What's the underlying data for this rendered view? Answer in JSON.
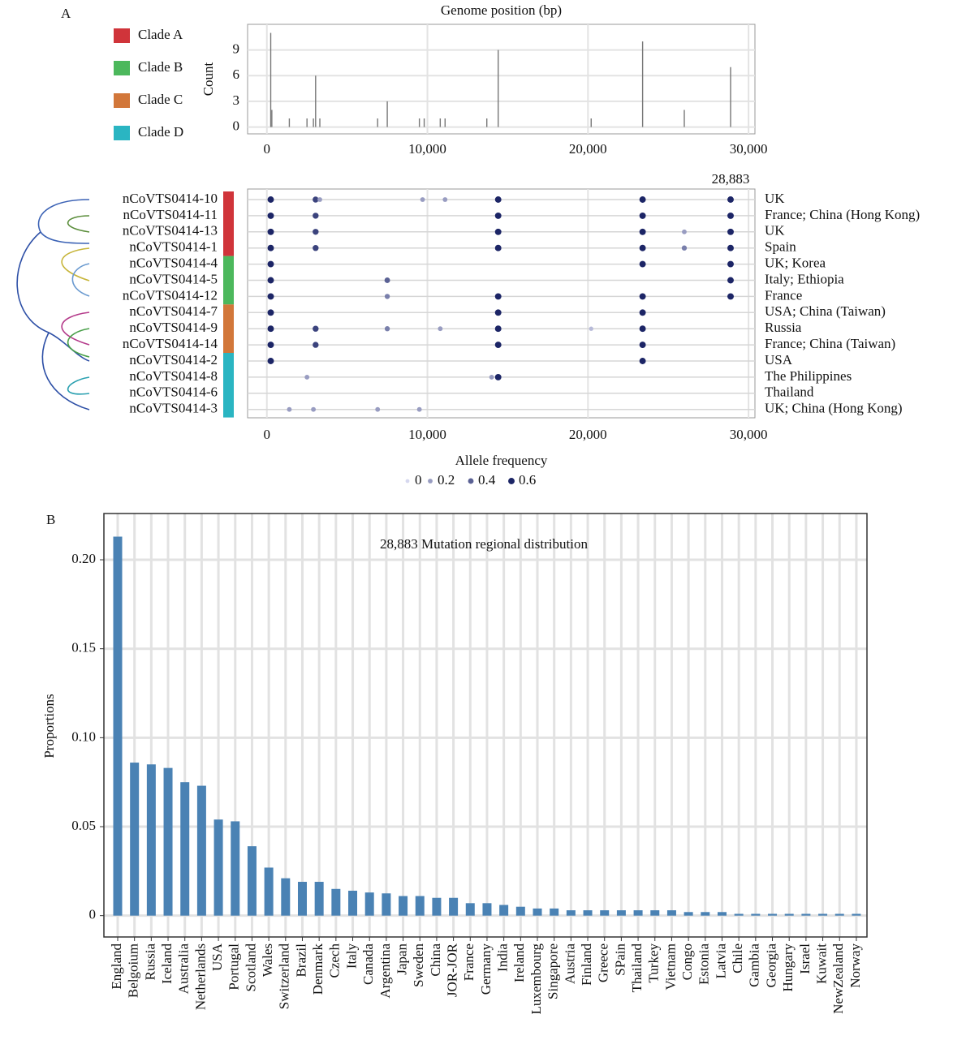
{
  "chart_data": [
    {
      "type": "spike",
      "panel": "A",
      "title": "Genome position (bp)",
      "y_label": "Count",
      "color": "#777777",
      "x": [
        241,
        310,
        1400,
        2500,
        2900,
        3037,
        3300,
        6900,
        7500,
        9500,
        9800,
        10800,
        11100,
        13700,
        14408,
        20200,
        23403,
        26000,
        28883
      ],
      "values": [
        11,
        2,
        1,
        1,
        1,
        6,
        1,
        1,
        3,
        1,
        1,
        1,
        1,
        1,
        9,
        1,
        10,
        2,
        7
      ],
      "xlim": [
        -1200,
        30400
      ],
      "ylim": [
        -0.8,
        12
      ],
      "xticks": [
        0,
        {
          "value": 10000,
          "label": "10,000"
        },
        {
          "value": 20000,
          "label": "20,000"
        },
        {
          "value": 30000,
          "label": "30,000"
        }
      ],
      "yticks": [
        0,
        3,
        6,
        9
      ],
      "grid": true
    },
    {
      "type": "dot-matrix",
      "annotation": {
        "value": 28883,
        "label": "28,883"
      },
      "legend_title": "Allele frequency",
      "legend_values": [
        0,
        0.2,
        0.4,
        0.6
      ],
      "color_range": [
        "#d6d8ef",
        "#1c2566"
      ],
      "xlim": [
        -1200,
        30400
      ],
      "xticks": [
        0,
        {
          "value": 10000,
          "label": "10,000"
        },
        {
          "value": 20000,
          "label": "20,000"
        },
        {
          "value": 30000,
          "label": "30,000"
        }
      ],
      "grid": true,
      "clades": [
        {
          "name": "Clade A",
          "color": "#d0343a",
          "samples": [
            {
              "name": "nCoVTS0414-10",
              "country": "UK",
              "positions": [
                241,
                3037,
                3300,
                9700,
                11100,
                14408,
                23403,
                28883
              ],
              "frequencies": [
                0.6,
                0.5,
                0.2,
                0.2,
                0.2,
                0.6,
                0.6,
                0.6
              ]
            },
            {
              "name": "nCoVTS0414-11",
              "country": "France; China (Hong Kong)",
              "positions": [
                241,
                3037,
                14408,
                23403,
                28883
              ],
              "frequencies": [
                0.6,
                0.5,
                0.6,
                0.6,
                0.6
              ]
            },
            {
              "name": "nCoVTS0414-13",
              "country": "UK",
              "positions": [
                241,
                3037,
                14408,
                23403,
                26000,
                28883
              ],
              "frequencies": [
                0.6,
                0.5,
                0.6,
                0.6,
                0.2,
                0.6
              ]
            },
            {
              "name": "nCoVTS0414-1",
              "country": "Spain",
              "positions": [
                241,
                3037,
                14408,
                23403,
                26000,
                28883
              ],
              "frequencies": [
                0.6,
                0.5,
                0.6,
                0.6,
                0.3,
                0.6
              ]
            }
          ]
        },
        {
          "name": "Clade B",
          "color": "#4cb85c",
          "samples": [
            {
              "name": "nCoVTS0414-4",
              "country": "UK; Korea",
              "positions": [
                241,
                23403,
                28883
              ],
              "frequencies": [
                0.6,
                0.6,
                0.6
              ]
            },
            {
              "name": "nCoVTS0414-5",
              "country": "Italy; Ethiopia",
              "positions": [
                241,
                7500,
                28883
              ],
              "frequencies": [
                0.6,
                0.4,
                0.6
              ]
            },
            {
              "name": "nCoVTS0414-12",
              "country": "France",
              "positions": [
                241,
                7500,
                14408,
                23403,
                28883
              ],
              "frequencies": [
                0.6,
                0.3,
                0.6,
                0.6,
                0.6
              ]
            }
          ]
        },
        {
          "name": "Clade C",
          "color": "#d2773a",
          "samples": [
            {
              "name": "nCoVTS0414-7",
              "country": "USA; China (Taiwan)",
              "positions": [
                241,
                14408,
                23403
              ],
              "frequencies": [
                0.6,
                0.6,
                0.6
              ]
            },
            {
              "name": "nCoVTS0414-9",
              "country": "Russia",
              "positions": [
                241,
                3037,
                7500,
                10800,
                14408,
                20200,
                23403
              ],
              "frequencies": [
                0.6,
                0.5,
                0.3,
                0.2,
                0.6,
                0.1,
                0.6
              ]
            },
            {
              "name": "nCoVTS0414-14",
              "country": "France; China (Taiwan)",
              "positions": [
                241,
                3037,
                14408,
                23403
              ],
              "frequencies": [
                0.6,
                0.5,
                0.6,
                0.6
              ]
            }
          ]
        },
        {
          "name": "Clade D",
          "color": "#2ab5c2",
          "samples": [
            {
              "name": "nCoVTS0414-2",
              "country": "USA",
              "positions": [
                241,
                23403
              ],
              "frequencies": [
                0.6,
                0.6
              ]
            },
            {
              "name": "nCoVTS0414-8",
              "country": "The Philippines",
              "positions": [
                2500,
                14000,
                14408
              ],
              "frequencies": [
                0.2,
                0.2,
                0.6
              ]
            },
            {
              "name": "nCoVTS0414-6",
              "country": "Thailand",
              "positions": [],
              "frequencies": []
            },
            {
              "name": "nCoVTS0414-3",
              "country": "UK; China (Hong Kong)",
              "positions": [
                1400,
                2900,
                6900,
                9500
              ],
              "frequencies": [
                0.2,
                0.2,
                0.2,
                0.2
              ]
            }
          ]
        }
      ]
    },
    {
      "type": "bar",
      "panel": "B",
      "title": "28,883 Mutation regional distribution",
      "y_label": "Proportions",
      "color": "#4a82b4",
      "categories": [
        "England",
        "Belgoium",
        "Russia",
        "Iceland",
        "Australia",
        "Netherlands",
        "USA",
        "Portugal",
        "Scotland",
        "Wales",
        "Switzerland",
        "Brazil",
        "Denmark",
        "Czech",
        "Italy",
        "Canada",
        "Argentina",
        "Japan",
        "Sweden",
        "China",
        "JOR-JOR",
        "France",
        "Germany",
        "India",
        "Ireland",
        "Luxembourg",
        "Singapore",
        "Austria",
        "Finland",
        "Greece",
        "SPain",
        "Thailand",
        "Turkey",
        "Vietnam",
        "Congo",
        "Estonia",
        "Latvia",
        "Chile",
        "Gambia",
        "Georgia",
        "Hungary",
        "Israel",
        "Kuwait",
        "NewZealand",
        "Norway"
      ],
      "values": [
        0.213,
        0.086,
        0.085,
        0.083,
        0.075,
        0.073,
        0.054,
        0.053,
        0.039,
        0.027,
        0.021,
        0.019,
        0.019,
        0.015,
        0.014,
        0.013,
        0.0125,
        0.011,
        0.011,
        0.01,
        0.01,
        0.007,
        0.007,
        0.006,
        0.005,
        0.004,
        0.004,
        0.003,
        0.003,
        0.003,
        0.003,
        0.003,
        0.003,
        0.003,
        0.002,
        0.002,
        0.002,
        0.001,
        0.001,
        0.001,
        0.001,
        0.001,
        0.001,
        0.001,
        0.001
      ],
      "ylim": [
        -0.012,
        0.226
      ],
      "yticks": [
        0,
        0.05,
        {
          "value": 0.1,
          "label": "0.10"
        },
        0.15,
        {
          "value": 0.2,
          "label": "0.20"
        }
      ],
      "grid": true
    }
  ]
}
